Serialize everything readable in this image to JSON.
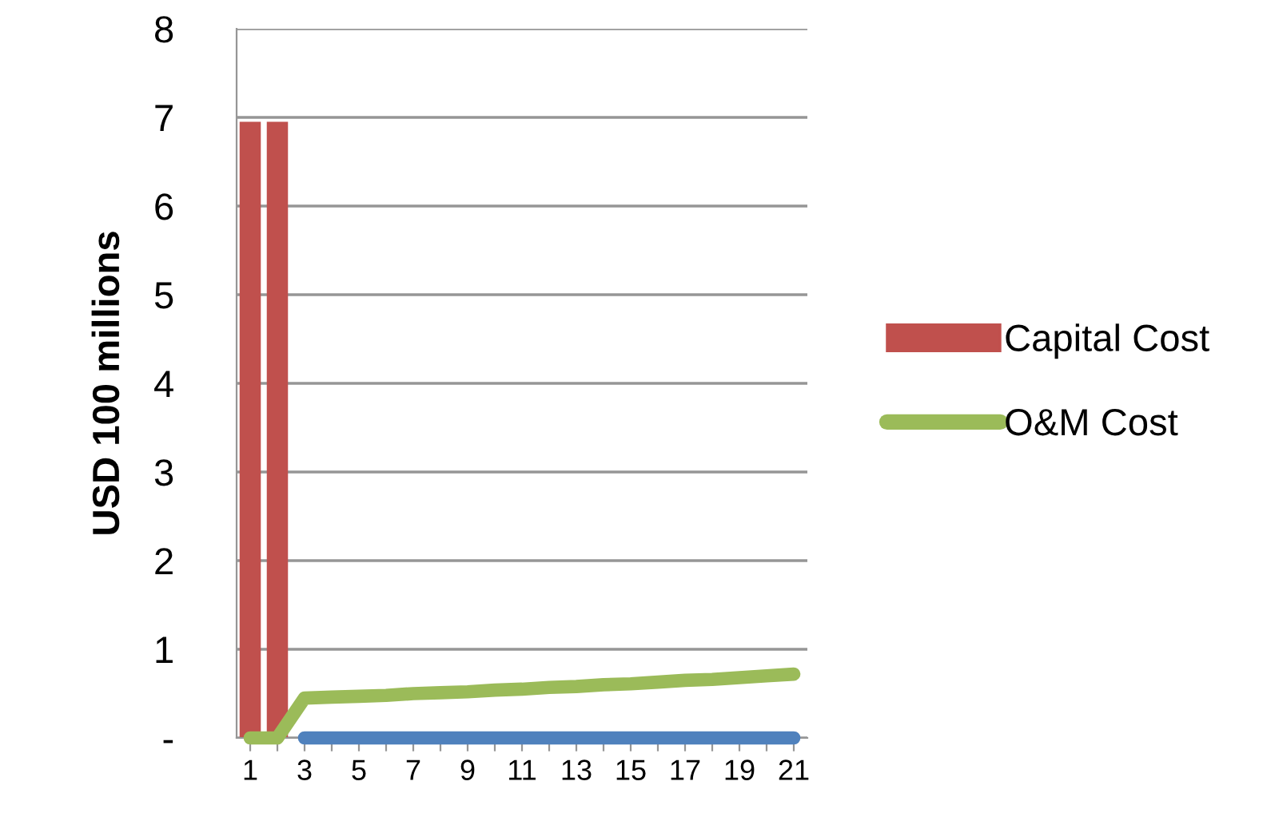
{
  "chart_data": {
    "type": "bar",
    "ylabel": "USD 100 millions",
    "categories": [
      "1",
      null,
      "3",
      null,
      "5",
      null,
      "7",
      null,
      "9",
      null,
      "11",
      null,
      "13",
      null,
      "15",
      null,
      "17",
      null,
      "19",
      null,
      "21"
    ],
    "series": [
      {
        "name": "Capital Cost",
        "color": "#c0504d",
        "values": [
          6.95,
          6.95,
          null,
          null,
          null,
          null,
          null,
          null,
          null,
          null,
          null,
          null,
          null,
          null,
          null,
          null,
          null,
          null,
          null,
          null,
          null
        ]
      },
      {
        "name": "O&M Cost",
        "type": "line",
        "color": "#9bbb59",
        "values": [
          0,
          0,
          0.45,
          0.46,
          0.47,
          0.48,
          0.5,
          0.51,
          0.52,
          0.54,
          0.55,
          0.57,
          0.58,
          0.6,
          0.61,
          0.63,
          0.65,
          0.66,
          0.68,
          0.7,
          0.72
        ]
      },
      {
        "type": "line",
        "color": "#4f81bd",
        "values": [
          null,
          null,
          0,
          0,
          0,
          0,
          0,
          0,
          0,
          0,
          0,
          0,
          0,
          0,
          0,
          0,
          0,
          0,
          0,
          0,
          0
        ]
      }
    ],
    "ylim": [
      0,
      8
    ],
    "yticks": [
      {
        "value": 0,
        "label": "-"
      },
      1,
      2,
      3,
      4,
      5,
      6,
      7,
      8
    ],
    "grid": "y",
    "legend": "right",
    "marker": "none",
    "line_style": "solid"
  }
}
